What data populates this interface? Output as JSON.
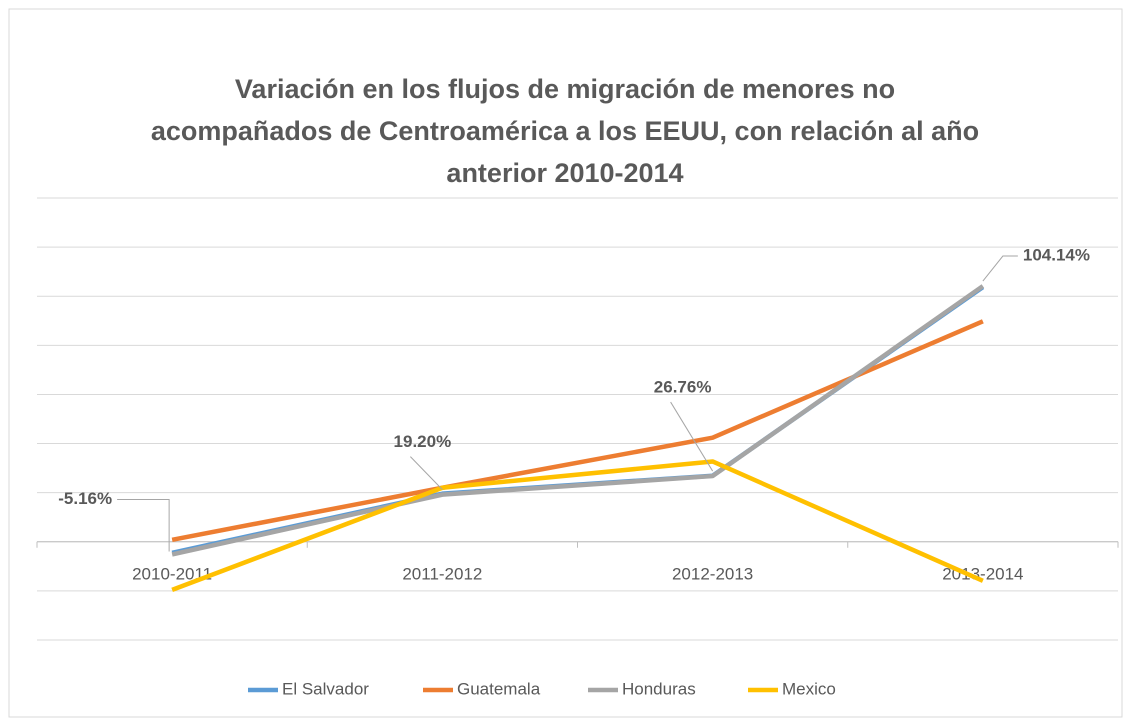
{
  "chart_data": {
    "type": "line",
    "title": "Variación en los flujos de migración de menores no acompañados de Centroamérica a los EEUU, con relación al año anterior 2010-2014",
    "categories": [
      "2010-2011",
      "2011-2012",
      "2012-2013",
      "2013-2014"
    ],
    "series": [
      {
        "name": "El Salvador",
        "color": "#5b9bd5",
        "values": [
          -4.5,
          19.6,
          26.9,
          103.7
        ]
      },
      {
        "name": "Guatemala",
        "color": "#ed7d31",
        "values": [
          0.8,
          22,
          42.4,
          89.8
        ]
      },
      {
        "name": "Honduras",
        "color": "#a5a5a5",
        "values": [
          -5.16,
          19.2,
          26.76,
          104.14
        ],
        "value_labels": [
          "-5.16%",
          "19.20%",
          "26.76%",
          "104.14%"
        ]
      },
      {
        "name": "Mexico",
        "color": "#ffc000",
        "values": [
          -19.6,
          22,
          32.7,
          -15.9
        ]
      }
    ],
    "ylim": [
      -40,
      140
    ],
    "yticks": [
      -40,
      -20,
      0,
      20,
      40,
      60,
      80,
      100,
      120,
      140
    ],
    "grid": true,
    "legend": "bottom"
  }
}
